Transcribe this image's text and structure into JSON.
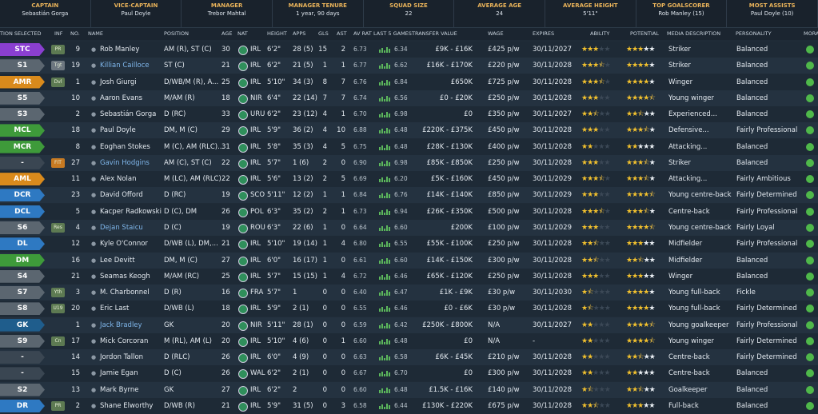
{
  "header": {
    "stats": [
      {
        "label": "CAPTAIN",
        "value": "Sebastián Gorga"
      },
      {
        "label": "VICE-CAPTAIN",
        "value": "Paul Doyle"
      },
      {
        "label": "MANAGER",
        "value": "Trebor Mahtal"
      },
      {
        "label": "MANAGER TENURE",
        "value": "1 year, 90 days"
      },
      {
        "label": "SQUAD SIZE",
        "value": "22"
      },
      {
        "label": "AVERAGE AGE",
        "value": "24"
      },
      {
        "label": "AVERAGE HEIGHT",
        "value": "5'11\""
      },
      {
        "label": "TOP GOALSCORER",
        "value": "Rob Manley (15)"
      },
      {
        "label": "MOST ASSISTS",
        "value": "Paul Doyle (10)"
      }
    ]
  },
  "table": {
    "columns": [
      "TION SELECTED",
      "INF",
      "NO.",
      "NAME",
      "POSITION",
      "AGE",
      "NAT",
      "HEIGHT",
      "APPS",
      "GLS",
      "AST",
      "AV RAT",
      "LAST 5 GAMES",
      "TRANSFER VALUE",
      "WAGE",
      "EXPIRES",
      "ABILITY",
      "POTENTIAL",
      "MEDIA DESCRIPTION",
      "PERSONALITY",
      "MORA"
    ],
    "rows": [
      {
        "sel": "STC",
        "inf": "PR",
        "no": "9",
        "name": "Rob Manley",
        "pos": "AM (R), ST (C)",
        "age": "30",
        "nat": "IRL",
        "height": "6'2\"",
        "apps": "28 (5)",
        "gls": "15",
        "ast": "2",
        "avrat": "6.73",
        "last5": "6.34",
        "value": "£9K - £16K",
        "wage": "£425 p/w",
        "expires": "30/11/2027",
        "ability": 3,
        "potential": 3,
        "media": "Striker",
        "personality": "Balanced"
      },
      {
        "sel": "S1",
        "inf": "Tgt",
        "no": "19",
        "name": "Killian Cailloce",
        "name_color": "#7fb6ea",
        "pos": "ST (C)",
        "age": "21",
        "nat": "IRL",
        "height": "6'2\"",
        "apps": "21 (5)",
        "gls": "1",
        "ast": "1",
        "avrat": "6.77",
        "last5": "6.62",
        "value": "£16K - £170K",
        "wage": "£220 p/w",
        "expires": "30/11/2028",
        "ability": 3.5,
        "potential": 4,
        "media": "Striker",
        "personality": "Balanced"
      },
      {
        "sel": "AMR",
        "inf": "Dvl",
        "no": "1",
        "name": "Josh Giurgi",
        "pos": "D/WB/M (R), A...",
        "age": "25",
        "nat": "IRL",
        "height": "5'10\"",
        "apps": "34 (3)",
        "gls": "8",
        "ast": "7",
        "avrat": "6.76",
        "last5": "6.84",
        "value": "£650K",
        "wage": "£725 p/w",
        "expires": "30/11/2028",
        "ability": 3.5,
        "potential": 4,
        "media": "Winger",
        "personality": "Balanced"
      },
      {
        "sel": "S5",
        "no": "10",
        "name": "Aaron Evans",
        "pos": "M/AM (R)",
        "age": "18",
        "nat": "NIR",
        "height": "6'4\"",
        "apps": "22 (14)",
        "gls": "7",
        "ast": "7",
        "avrat": "6.74",
        "last5": "6.56",
        "value": "£0 - £20K",
        "wage": "£250 p/w",
        "expires": "30/11/2028",
        "ability": 3,
        "potential": 4.5,
        "media": "Young winger",
        "personality": "Balanced"
      },
      {
        "sel": "S3",
        "no": "2",
        "name": "Sebastián Gorga",
        "pos": "D (RC)",
        "age": "33",
        "nat": "URU",
        "height": "6'2\"",
        "apps": "23 (12)",
        "gls": "4",
        "ast": "1",
        "avrat": "6.70",
        "last5": "6.98",
        "value": "£0",
        "wage": "£350 p/w",
        "expires": "30/11/2027",
        "ability": 2.5,
        "potential": 2.5,
        "media": "Experienced...",
        "personality": "Balanced"
      },
      {
        "sel": "MCL",
        "no": "18",
        "name": "Paul Doyle",
        "pos": "DM, M (C)",
        "age": "29",
        "nat": "IRL",
        "height": "5'9\"",
        "apps": "36 (2)",
        "gls": "4",
        "ast": "10",
        "avrat": "6.88",
        "last5": "6.48",
        "value": "£220K - £375K",
        "wage": "£450 p/w",
        "expires": "30/11/2028",
        "ability": 3,
        "potential": 3.5,
        "media": "Defensive...",
        "personality": "Fairly Professional"
      },
      {
        "sel": "MCR",
        "no": "8",
        "name": "Eoghan Stokes",
        "pos": "M (C), AM (RLC)...",
        "age": "31",
        "nat": "IRL",
        "height": "5'8\"",
        "apps": "35 (3)",
        "gls": "4",
        "ast": "5",
        "avrat": "6.75",
        "last5": "6.48",
        "value": "£28K - £130K",
        "wage": "£400 p/w",
        "expires": "30/11/2028",
        "ability": 2,
        "potential": 2,
        "media": "Attacking...",
        "personality": "Balanced"
      },
      {
        "sel": "-",
        "inf": "FIT",
        "no": "27",
        "name": "Gavin Hodgins",
        "name_color": "#7fb6ea",
        "pos": "AM (C), ST (C)",
        "age": "22",
        "nat": "IRL",
        "height": "5'7\"",
        "apps": "1 (6)",
        "gls": "2",
        "ast": "0",
        "avrat": "6.90",
        "last5": "6.98",
        "value": "£85K - £850K",
        "wage": "£250 p/w",
        "expires": "30/11/2028",
        "ability": 3,
        "potential": 3.5,
        "media": "Striker",
        "personality": "Balanced"
      },
      {
        "sel": "AML",
        "no": "11",
        "name": "Alex Nolan",
        "pos": "M (LC), AM (RLC)",
        "age": "22",
        "nat": "IRL",
        "height": "5'6\"",
        "apps": "13 (2)",
        "gls": "2",
        "ast": "5",
        "avrat": "6.69",
        "last5": "6.20",
        "value": "£5K - £160K",
        "wage": "£450 p/w",
        "expires": "30/11/2029",
        "ability": 3.5,
        "potential": 3.5,
        "media": "Attacking...",
        "personality": "Fairly Ambitious"
      },
      {
        "sel": "DCR",
        "no": "23",
        "name": "David Offord",
        "pos": "D (RC)",
        "age": "19",
        "nat": "SCO",
        "height": "5'11\"",
        "apps": "12 (2)",
        "gls": "1",
        "ast": "1",
        "avrat": "6.84",
        "last5": "6.76",
        "value": "£14K - £140K",
        "wage": "£850 p/w",
        "expires": "30/11/2029",
        "ability": 3,
        "potential": 4.5,
        "media": "Young centre-back",
        "personality": "Fairly Determined"
      },
      {
        "sel": "DCL",
        "no": "5",
        "name": "Kacper Radkowski",
        "pos": "D (C), DM",
        "age": "26",
        "nat": "POL",
        "height": "6'3\"",
        "apps": "35 (2)",
        "gls": "2",
        "ast": "1",
        "avrat": "6.73",
        "last5": "6.94",
        "value": "£26K - £350K",
        "wage": "£500 p/w",
        "expires": "30/11/2028",
        "ability": 3.5,
        "potential": 3.5,
        "media": "Centre-back",
        "personality": "Fairly Professional"
      },
      {
        "sel": "S6",
        "inf": "Res",
        "no": "4",
        "name": "Dejan Staicu",
        "name_color": "#7fb6ea",
        "pos": "D (C)",
        "age": "19",
        "nat": "ROU",
        "height": "6'3\"",
        "apps": "22 (6)",
        "gls": "1",
        "ast": "0",
        "avrat": "6.64",
        "last5": "6.60",
        "value": "£200K",
        "wage": "£100 p/w",
        "expires": "30/11/2029",
        "ability": 3,
        "potential": 4.5,
        "media": "Young centre-back",
        "personality": "Fairly Loyal"
      },
      {
        "sel": "DL",
        "no": "12",
        "name": "Kyle O'Connor",
        "pos": "D/WB (L), DM,...",
        "age": "21",
        "nat": "IRL",
        "height": "5'10\"",
        "apps": "19 (14)",
        "gls": "1",
        "ast": "4",
        "avrat": "6.80",
        "last5": "6.55",
        "value": "£55K - £100K",
        "wage": "£250 p/w",
        "expires": "30/11/2028",
        "ability": 2.5,
        "potential": 3,
        "media": "Midfielder",
        "personality": "Fairly Professional"
      },
      {
        "sel": "DM",
        "no": "16",
        "name": "Lee Devitt",
        "pos": "DM, M (C)",
        "age": "27",
        "nat": "IRL",
        "height": "6'0\"",
        "apps": "16 (17)",
        "gls": "1",
        "ast": "0",
        "avrat": "6.61",
        "last5": "6.60",
        "value": "£14K - £150K",
        "wage": "£300 p/w",
        "expires": "30/11/2028",
        "ability": 2.5,
        "potential": 2.5,
        "media": "Midfielder",
        "personality": "Balanced"
      },
      {
        "sel": "S4",
        "no": "21",
        "name": "Seamas Keogh",
        "pos": "M/AM (RC)",
        "age": "25",
        "nat": "IRL",
        "height": "5'7\"",
        "apps": "15 (15)",
        "gls": "1",
        "ast": "4",
        "avrat": "6.72",
        "last5": "6.46",
        "value": "£65K - £120K",
        "wage": "£250 p/w",
        "expires": "30/11/2028",
        "ability": 3,
        "potential": 3,
        "media": "Winger",
        "personality": "Balanced"
      },
      {
        "sel": "S7",
        "inf": "Yth",
        "no": "3",
        "name": "M. Charbonnel",
        "pos": "D (R)",
        "age": "16",
        "nat": "FRA",
        "height": "5'7\"",
        "apps": "1",
        "gls": "0",
        "ast": "0",
        "avrat": "6.40",
        "last5": "6.47",
        "value": "£1K - £9K",
        "wage": "£30 p/w",
        "expires": "30/11/2030",
        "ability": 1.5,
        "potential": 4,
        "media": "Young full-back",
        "personality": "Fickle"
      },
      {
        "sel": "S8",
        "inf": "U19",
        "no": "20",
        "name": "Eric Last",
        "pos": "D/WB (L)",
        "age": "18",
        "nat": "IRL",
        "height": "5'9\"",
        "apps": "2 (1)",
        "gls": "0",
        "ast": "0",
        "avrat": "6.55",
        "last5": "6.46",
        "value": "£0 - £6K",
        "wage": "£30 p/w",
        "expires": "30/11/2028",
        "ability": 1.5,
        "potential": 4,
        "media": "Young full-back",
        "personality": "Fairly Determined"
      },
      {
        "sel": "GK",
        "no": "1",
        "name": "Jack Bradley",
        "name_color": "#7fb6ea",
        "pos": "GK",
        "age": "20",
        "nat": "NIR",
        "height": "5'11\"",
        "apps": "28 (1)",
        "gls": "0",
        "ast": "0",
        "avrat": "6.59",
        "last5": "6.42",
        "value": "£250K - £800K",
        "wage": "N/A",
        "expires": "30/11/2027",
        "ability": 2,
        "potential": 4.5,
        "media": "Young goalkeeper",
        "personality": "Fairly Professional"
      },
      {
        "sel": "S9",
        "inf": "Cn",
        "no": "17",
        "name": "Mick Corcoran",
        "pos": "M (RL), AM (L)",
        "age": "20",
        "nat": "IRL",
        "height": "5'10\"",
        "apps": "4 (6)",
        "gls": "0",
        "ast": "1",
        "avrat": "6.60",
        "last5": "6.48",
        "value": "£0",
        "wage": "N/A",
        "expires": "-",
        "ability": 2,
        "potential": 4.5,
        "media": "Young winger",
        "personality": "Fairly Determined"
      },
      {
        "sel": "-",
        "no": "14",
        "name": "Jordon Tallon",
        "pos": "D (RLC)",
        "age": "26",
        "nat": "IRL",
        "height": "6'0\"",
        "apps": "4 (9)",
        "gls": "0",
        "ast": "0",
        "avrat": "6.63",
        "last5": "6.58",
        "value": "£6K - £45K",
        "wage": "£210 p/w",
        "expires": "30/11/2028",
        "ability": 2,
        "potential": 2.5,
        "media": "Centre-back",
        "personality": "Fairly Determined"
      },
      {
        "sel": "-",
        "no": "15",
        "name": "Jamie Egan",
        "pos": "D (C)",
        "age": "26",
        "nat": "WAL",
        "height": "6'2\"",
        "apps": "2 (1)",
        "gls": "0",
        "ast": "0",
        "avrat": "6.67",
        "last5": "6.70",
        "value": "£0",
        "wage": "£300 p/w",
        "expires": "30/11/2028",
        "ability": 2,
        "potential": 2,
        "media": "Centre-back",
        "personality": "Balanced"
      },
      {
        "sel": "S2",
        "no": "13",
        "name": "Mark Byrne",
        "pos": "GK",
        "age": "27",
        "nat": "IRL",
        "height": "6'2\"",
        "apps": "2",
        "gls": "0",
        "ast": "0",
        "avrat": "6.60",
        "last5": "6.48",
        "value": "£1.5K - £16K",
        "wage": "£140 p/w",
        "expires": "30/11/2028",
        "ability": 1.5,
        "potential": 2.5,
        "media": "Goalkeeper",
        "personality": "Balanced"
      },
      {
        "sel": "DR",
        "inf": "PR",
        "no": "2",
        "name": "Shane Elworthy",
        "pos": "D/WB (R)",
        "age": "21",
        "nat": "IRL",
        "height": "5'9\"",
        "apps": "31 (5)",
        "gls": "0",
        "ast": "3",
        "avrat": "6.58",
        "last5": "6.44",
        "value": "£130K - £220K",
        "wage": "£675 p/w",
        "expires": "30/11/2028",
        "ability": 2.5,
        "potential": 3,
        "media": "Full-back",
        "personality": "Balanced"
      }
    ]
  }
}
